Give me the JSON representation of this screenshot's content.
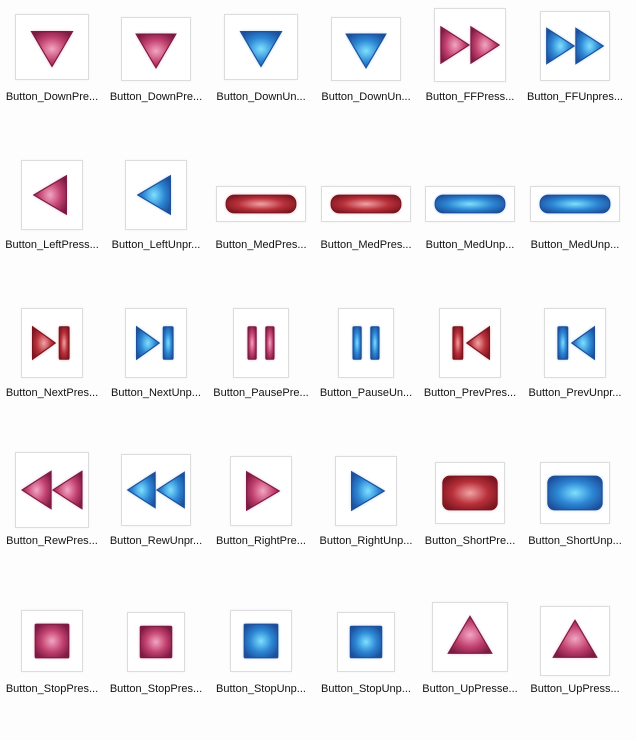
{
  "colors": {
    "pressed_dark": "#7c1a43",
    "pressed_mid": "#c2416f",
    "pressed_light": "#f2a6c2",
    "unpressed_dark": "#1d4f9b",
    "unpressed_mid": "#2c86d4",
    "unpressed_light": "#7ee0ff",
    "red_dark": "#7a1620",
    "red_mid": "#b9303a",
    "red_light": "#f1a3a6"
  },
  "items": [
    {
      "label": "Button_DownPre...",
      "icon": "down-triangle-icon",
      "color": "pressed"
    },
    {
      "label": "Button_DownPre...",
      "icon": "down-triangle-icon",
      "color": "pressed"
    },
    {
      "label": "Button_DownUn...",
      "icon": "down-triangle-icon",
      "color": "unpressed"
    },
    {
      "label": "Button_DownUn...",
      "icon": "down-triangle-icon",
      "color": "unpressed"
    },
    {
      "label": "Button_FFPress...",
      "icon": "fast-forward-icon",
      "color": "pressed"
    },
    {
      "label": "Button_FFUnpres...",
      "icon": "fast-forward-icon",
      "color": "unpressed"
    },
    {
      "label": "Button_LeftPress...",
      "icon": "left-triangle-icon",
      "color": "pressed"
    },
    {
      "label": "Button_LeftUnpr...",
      "icon": "left-triangle-icon",
      "color": "unpressed"
    },
    {
      "label": "Button_MedPres...",
      "icon": "medium-bar-icon",
      "color": "red"
    },
    {
      "label": "Button_MedPres...",
      "icon": "medium-bar-icon",
      "color": "red"
    },
    {
      "label": "Button_MedUnp...",
      "icon": "medium-bar-icon",
      "color": "unpressed"
    },
    {
      "label": "Button_MedUnp...",
      "icon": "medium-bar-icon",
      "color": "unpressed"
    },
    {
      "label": "Button_NextPres...",
      "icon": "next-icon",
      "color": "red"
    },
    {
      "label": "Button_NextUnp...",
      "icon": "next-icon",
      "color": "unpressed"
    },
    {
      "label": "Button_PausePre...",
      "icon": "pause-icon",
      "color": "pressed"
    },
    {
      "label": "Button_PauseUn...",
      "icon": "pause-icon",
      "color": "unpressed"
    },
    {
      "label": "Button_PrevPres...",
      "icon": "prev-icon",
      "color": "red"
    },
    {
      "label": "Button_PrevUnpr...",
      "icon": "prev-icon",
      "color": "unpressed"
    },
    {
      "label": "Button_RewPres...",
      "icon": "rewind-icon",
      "color": "pressed"
    },
    {
      "label": "Button_RewUnpr...",
      "icon": "rewind-icon",
      "color": "unpressed"
    },
    {
      "label": "Button_RightPre...",
      "icon": "right-triangle-icon",
      "color": "pressed"
    },
    {
      "label": "Button_RightUnp...",
      "icon": "right-triangle-icon",
      "color": "unpressed"
    },
    {
      "label": "Button_ShortPre...",
      "icon": "short-bar-icon",
      "color": "red"
    },
    {
      "label": "Button_ShortUnp...",
      "icon": "short-bar-icon",
      "color": "unpressed"
    },
    {
      "label": "Button_StopPres...",
      "icon": "stop-square-icon",
      "color": "pressed"
    },
    {
      "label": "Button_StopPres...",
      "icon": "stop-square-icon",
      "color": "pressed"
    },
    {
      "label": "Button_StopUnp...",
      "icon": "stop-square-icon",
      "color": "unpressed"
    },
    {
      "label": "Button_StopUnp...",
      "icon": "stop-square-icon",
      "color": "unpressed"
    },
    {
      "label": "Button_UpPresse...",
      "icon": "up-triangle-icon",
      "color": "pressed"
    },
    {
      "label": "Button_UpPress...",
      "icon": "up-triangle-icon",
      "color": "pressed"
    }
  ]
}
